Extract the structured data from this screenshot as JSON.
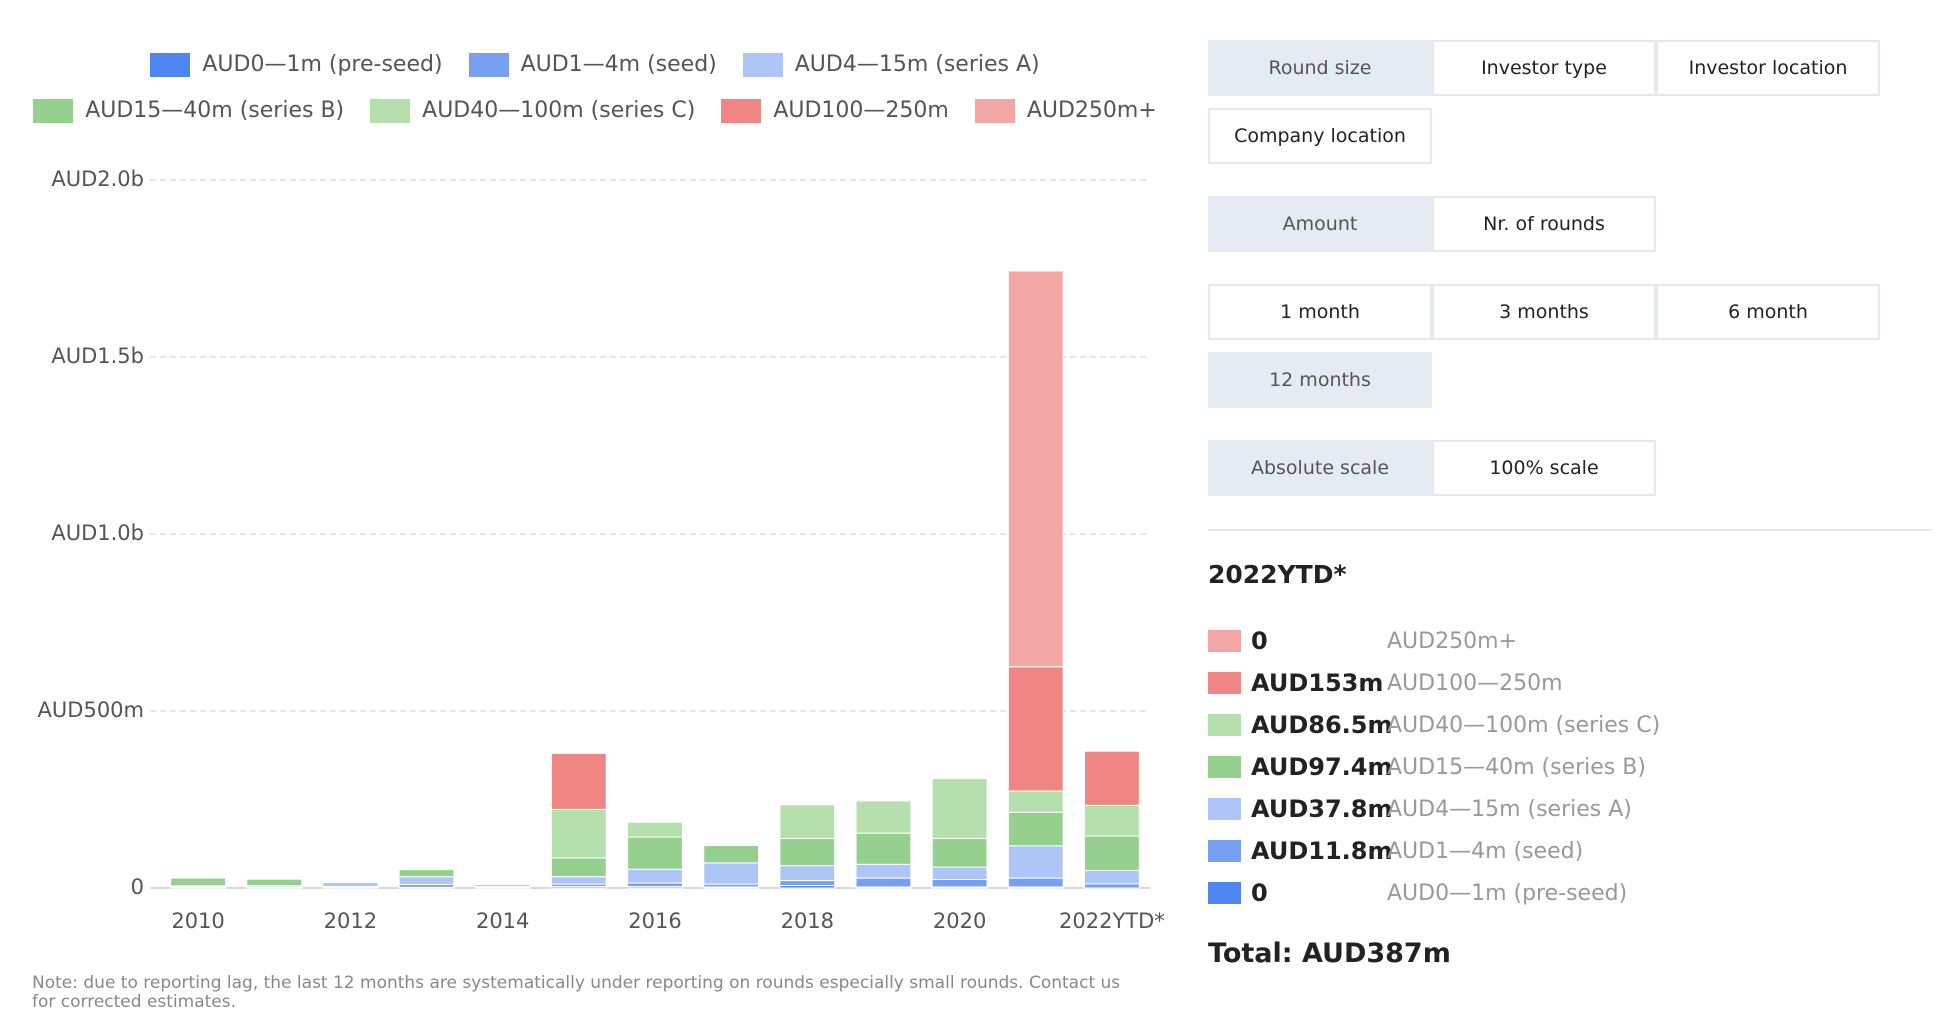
{
  "chart_data": {
    "type": "stacked-bar",
    "categories": [
      "2010",
      null,
      "2012",
      null,
      "2014",
      null,
      "2016",
      null,
      "2018",
      null,
      "2020",
      null,
      "2022YTD*"
    ],
    "ylim": [
      0,
      2000
    ],
    "yticks": [
      0,
      {
        "value": 500,
        "label": "AUD500m"
      },
      {
        "value": 1000,
        "label": "AUD1.0b"
      },
      {
        "value": 1500,
        "label": "AUD1.5b"
      },
      {
        "value": 2000,
        "label": "AUD2.0b"
      }
    ],
    "grid": true,
    "series": [
      {
        "name": "AUD0—1m (pre-seed)",
        "color": "#4f86f0",
        "values": [
          1,
          1,
          1,
          2,
          1,
          4,
          4,
          3,
          7,
          3,
          3,
          3,
          0
        ]
      },
      {
        "name": "AUD1—4m (seed)",
        "color": "#77a0f2",
        "values": [
          2,
          2,
          3,
          8,
          3,
          7,
          10,
          8,
          14,
          25,
          21,
          25,
          11.8
        ]
      },
      {
        "name": "AUD4—15m (series A)",
        "color": "#aec6f7",
        "values": [
          3,
          4,
          12,
          22,
          6,
          21,
          39,
          60,
          42,
          39,
          35,
          91,
          37.8
        ]
      },
      {
        "name": "AUD15—40m (series B)",
        "color": "#96d08f",
        "values": [
          22,
          18,
          2,
          20,
          0,
          53,
          91,
          49,
          77,
          88,
          81,
          95,
          97.4
        ]
      },
      {
        "name": "AUD40—100m (series C)",
        "color": "#b5e0ae",
        "values": [
          0,
          0,
          0,
          0,
          0,
          137,
          42,
          0,
          95,
          91,
          169,
          60,
          86.5
        ]
      },
      {
        "name": "AUD100—250m",
        "color": "#ef8683",
        "values": [
          0,
          0,
          0,
          0,
          0,
          158,
          0,
          0,
          0,
          0,
          0,
          351,
          153
        ]
      },
      {
        "name": "AUD250m+",
        "color": "#f2a7a5",
        "values": [
          0,
          0,
          0,
          0,
          0,
          0,
          0,
          0,
          0,
          0,
          0,
          1118,
          0
        ]
      }
    ]
  },
  "note": "Note: due to reporting lag, the last 12 months are systematically under reporting on rounds especially small rounds. Contact us for corrected estimates.",
  "controls": [
    [
      {
        "label": "Round size",
        "selected": true
      },
      {
        "label": "Investor type",
        "selected": false
      },
      {
        "label": "Investor location",
        "selected": false
      },
      {
        "label": "Company location",
        "selected": false
      }
    ],
    [
      {
        "label": "Amount",
        "selected": true
      },
      {
        "label": "Nr. of rounds",
        "selected": false
      }
    ],
    [
      {
        "label": "1 month",
        "selected": false
      },
      {
        "label": "3 months",
        "selected": false
      },
      {
        "label": "6 month",
        "selected": false
      },
      {
        "label": "12 months",
        "selected": true
      }
    ],
    [
      {
        "label": "Absolute scale",
        "selected": true
      },
      {
        "label": "100% scale",
        "selected": false
      }
    ]
  ],
  "summary": {
    "title": "2022YTD*",
    "items": [
      {
        "amount": "0",
        "label": "AUD250m+"
      },
      {
        "amount": "AUD153m",
        "label": "AUD100—250m"
      },
      {
        "amount": "AUD86.5m",
        "label": "AUD40—100m (series C)"
      },
      {
        "amount": "AUD97.4m",
        "label": "AUD15—40m (series B)"
      },
      {
        "amount": "AUD37.8m",
        "label": "AUD4—15m (series A)"
      },
      {
        "amount": "AUD11.8m",
        "label": "AUD1—4m (seed)"
      },
      {
        "amount": "0",
        "label": "AUD0—1m (pre-seed)"
      }
    ],
    "total": "Total: AUD387m"
  }
}
